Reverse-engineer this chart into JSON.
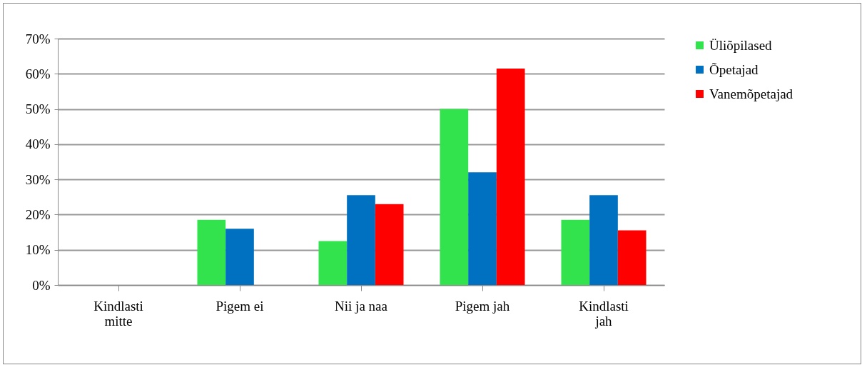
{
  "chart_data": {
    "type": "bar",
    "categories": [
      "Kindlasti mitte",
      "Pigem ei",
      "Nii ja naa",
      "Pigem jah",
      "Kindlasti jah"
    ],
    "series": [
      {
        "name": "Üliõpilased",
        "color": "#33e34d",
        "values": [
          0,
          18.5,
          12.5,
          50,
          18.5
        ]
      },
      {
        "name": "Õpetajad",
        "color": "#0070c0",
        "values": [
          0,
          16,
          25.5,
          32,
          25.5
        ]
      },
      {
        "name": "Vanemõpetajad",
        "color": "#ff0000",
        "values": [
          0,
          0,
          23,
          61.5,
          15.5
        ]
      }
    ],
    "ylim": [
      0,
      70
    ],
    "yticks": [
      {
        "value": 0,
        "label": "0%"
      },
      {
        "value": 10,
        "label": "10%"
      },
      {
        "value": 20,
        "label": "20%"
      },
      {
        "value": 30,
        "label": "30%"
      },
      {
        "value": 40,
        "label": "40%"
      },
      {
        "value": 50,
        "label": "50%"
      },
      {
        "value": 60,
        "label": "60%"
      },
      {
        "value": 70,
        "label": "70%"
      }
    ],
    "grid": "y",
    "legend": "right"
  }
}
